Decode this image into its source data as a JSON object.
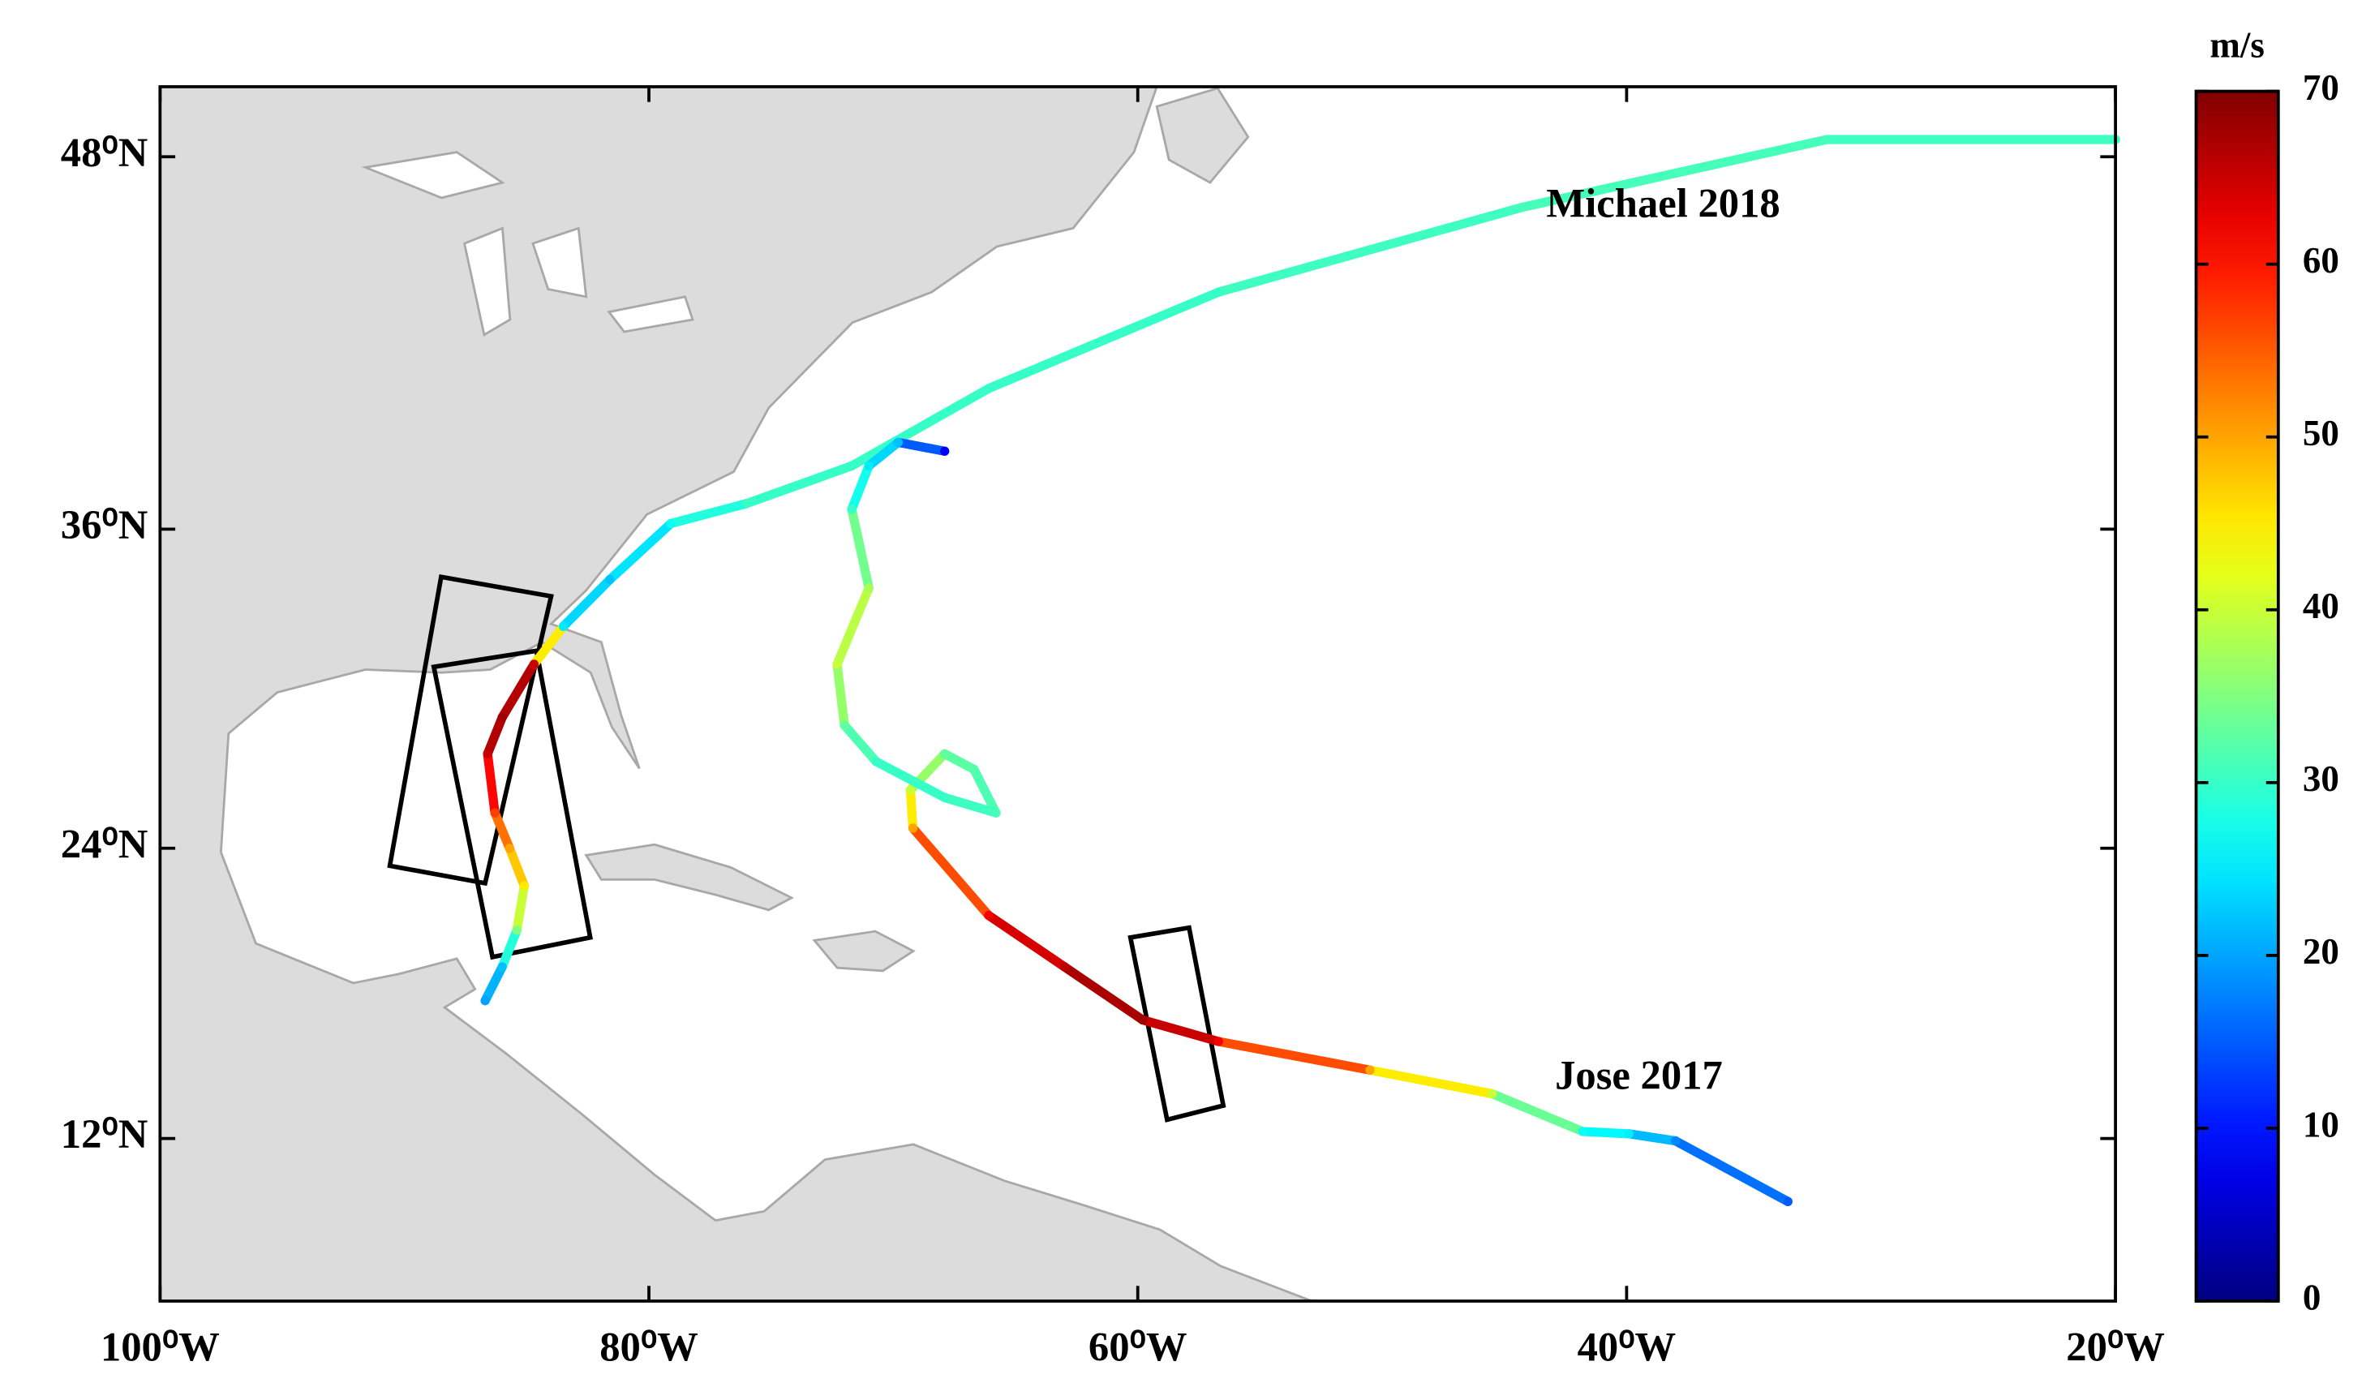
{
  "chart_data": {
    "type": "map",
    "projection": "mercator",
    "xlim": [
      -100,
      -20
    ],
    "ylim": [
      5,
      50
    ],
    "xticks": [
      {
        "value": -100,
        "label": "100⁰W"
      },
      {
        "value": -80,
        "label": "80⁰W"
      },
      {
        "value": -60,
        "label": "60⁰W"
      },
      {
        "value": -40,
        "label": "40⁰W"
      },
      {
        "value": -20,
        "label": "20⁰W"
      }
    ],
    "yticks": [
      {
        "value": 12,
        "label": "12⁰N"
      },
      {
        "value": 24,
        "label": "24⁰N"
      },
      {
        "value": 36,
        "label": "36⁰N"
      },
      {
        "value": 48,
        "label": "48⁰N"
      }
    ],
    "colormap": "jet",
    "colorbar": {
      "label": "m/s",
      "lim": [
        0,
        70
      ],
      "ticks": [
        0,
        10,
        20,
        30,
        40,
        50,
        60,
        70
      ]
    },
    "annotations": [
      {
        "text": "Michael 2018",
        "lon": -38.5,
        "lat": 46.5
      },
      {
        "text": "Jose 2017",
        "lon": -39.5,
        "lat": 14.5
      }
    ],
    "series": [
      {
        "name": "Michael 2018",
        "lon": [
          -86.7,
          -86.0,
          -85.4,
          -85.1,
          -85.7,
          -86.3,
          -86.6,
          -86.0,
          -84.7,
          -83.5,
          -81.6,
          -79.1,
          -76.0,
          -71.7,
          -66.1,
          -56.7,
          -44.3,
          -31.8,
          -20.0
        ],
        "lat": [
          17.8,
          19.2,
          20.7,
          22.5,
          24.0,
          25.4,
          27.7,
          29.1,
          31.1,
          32.5,
          34.2,
          36.2,
          36.9,
          38.2,
          40.8,
          43.9,
          46.5,
          48.5,
          48.5
        ],
        "speed": [
          20,
          22,
          35,
          45,
          50,
          57,
          65,
          68,
          65,
          25,
          22,
          27,
          30,
          30,
          30,
          30,
          31,
          31,
          30
        ]
      },
      {
        "name": "Jose 2017",
        "lon": [
          -33.4,
          -38.0,
          -39.9,
          -41.8,
          -45.5,
          -50.5,
          -56.7,
          -59.8,
          -63.0,
          -66.1,
          -69.2,
          -69.3,
          -67.9,
          -66.7,
          -65.8,
          -67.9,
          -70.7,
          -72.0,
          -72.3,
          -71.0,
          -71.7,
          -71.0,
          -69.8,
          -67.9
        ],
        "lat": [
          9.3,
          11.9,
          12.2,
          12.3,
          13.9,
          14.9,
          16.1,
          17.0,
          19.2,
          21.3,
          24.8,
          26.3,
          27.7,
          27.1,
          25.4,
          26.0,
          27.4,
          28.8,
          31.1,
          33.9,
          36.7,
          38.2,
          39.0,
          38.7
        ],
        "speed": [
          15,
          18,
          25,
          27,
          40,
          50,
          62,
          68,
          66,
          62,
          50,
          40,
          33,
          32,
          31,
          30,
          30,
          33,
          40,
          38,
          30,
          25,
          22,
          8
        ]
      }
    ],
    "boxes": [
      {
        "lon": [
          -88.5,
          -84.0,
          -86.7,
          -90.6
        ],
        "lat": [
          34.3,
          33.6,
          22.6,
          23.3
        ]
      },
      {
        "lon": [
          -88.8,
          -84.6,
          -82.4,
          -86.4
        ],
        "lat": [
          31.0,
          31.6,
          20.4,
          19.6
        ]
      },
      {
        "lon": [
          -60.3,
          -57.9,
          -56.5,
          -58.8
        ],
        "lat": [
          20.4,
          20.8,
          13.4,
          12.8
        ]
      }
    ]
  }
}
